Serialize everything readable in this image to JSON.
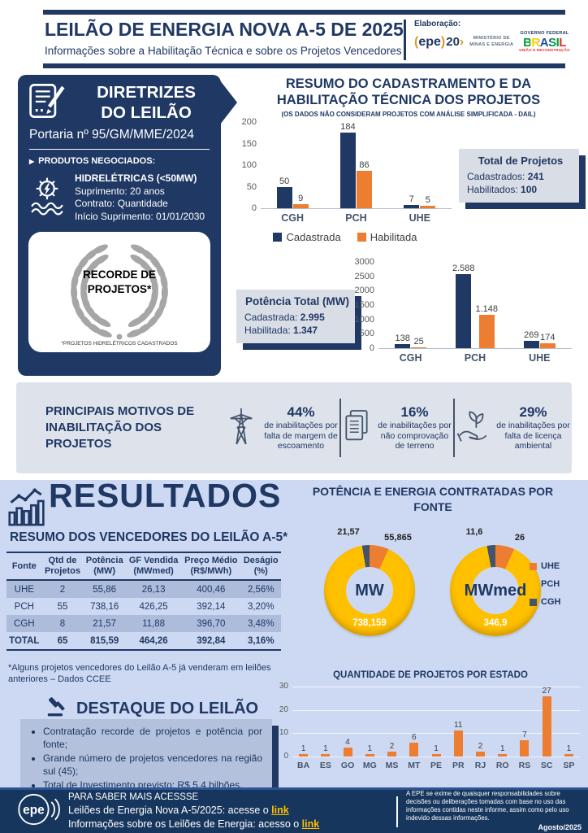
{
  "colors": {
    "navy": "#1f3864",
    "orange": "#ed7d31",
    "yellow": "#ffc000",
    "slate": "#44546a",
    "results_bg": "#cdd9f2",
    "band_bg": "#dee2eb",
    "row_shade": "#aebcdc",
    "link": "#ffc000"
  },
  "header": {
    "title": "LEILÃO DE ENERGIA NOVA A-5 DE 2025",
    "subtitle": "Informações sobre a Habilitação Técnica e sobre os Projetos Vencedores",
    "elaboration_label": "Elaboração:",
    "epe_text": "epe",
    "epe_paren_open": "(",
    "epe_paren_close": ")",
    "epe_anniversary": "20",
    "epe_swoosh": "›",
    "ministry_line1": "MINISTÉRIO DE",
    "ministry_line2": "MINAS E ENERGIA",
    "gov_top": "GOVERNO FEDERAL",
    "gov_name": "BRASIL",
    "gov_bottom": "UNIÃO E RECONSTRUÇÃO"
  },
  "guidelines_panel": {
    "title_line1": "DIRETRIZES",
    "title_line2": "DO LEILÃO",
    "ordinance": "Portaria nº 95/GM/MME/2024",
    "products_bullet": "▶",
    "products_label": "PRODUTOS NEGOCIADOS:",
    "product": {
      "name": "HIDRELÉTRICAS (<50MW)",
      "supply": "Suprimento: 20 anos",
      "contract": "Contrato: Quantidade",
      "start": "Início Suprimento: 01/01/2030"
    },
    "record_badge": {
      "title_line1": "RECORDE DE",
      "title_line2": "PROJETOS*",
      "footnote": "*PROJETOS HIDRELÉTRICOS CADASTRADOS"
    }
  },
  "registration_summary": {
    "title_line1": "RESUMO DO CADASTRAMENTO E DA",
    "title_line2": "HABILITAÇÃO TÉCNICA DOS PROJETOS",
    "subtitle": "(OS DADOS NÃO CONSIDERAM PROJETOS COM ANÁLISE SIMPLIFICADA - DAIL)",
    "total_box": {
      "title": "Total de Projetos",
      "l1": "Cadastrados: ",
      "v1": "241",
      "l2": "Habilitados: ",
      "v2": "100"
    },
    "power_box": {
      "title": "Potência Total (MW)",
      "l1": "Cadastrada: ",
      "v1": "2.995",
      "l2": "Habilitada: ",
      "v2": "1.347"
    }
  },
  "inability": {
    "title_line1": "PRINCIPAIS MOTIVOS DE",
    "title_line2": "INABILITAÇÃO DOS PROJETOS",
    "items": [
      {
        "pct": "44%",
        "text": "de inabilitações por falta de margem de escoamento",
        "icon": "transmission-tower"
      },
      {
        "pct": "16%",
        "text": "de inabilitações por não comprovação de terreno",
        "icon": "documents"
      },
      {
        "pct": "29%",
        "text": "de inabilitações por falta de licença ambiental",
        "icon": "hand-leaf"
      }
    ]
  },
  "results": {
    "title": "RESULTADOS",
    "winners_title": "RESUMO DOS VENCEDORES DO LEILÃO A-5*",
    "table": {
      "headers": [
        "Fonte",
        "Qtd de\nProjetos",
        "Potência\n(MW)",
        "GF Vendida\n(MWmed)",
        "Preço Médio\n(R$/MWh)",
        "Deságio\n(%)"
      ],
      "rows": [
        [
          "UHE",
          "2",
          "55,86",
          "26,13",
          "400,46",
          "2,56%"
        ],
        [
          "PCH",
          "55",
          "738,16",
          "426,25",
          "392,14",
          "3,20%"
        ],
        [
          "CGH",
          "8",
          "21,57",
          "11,88",
          "396,70",
          "3,48%"
        ],
        [
          "TOTAL",
          "65",
          "815,59",
          "464,26",
          "392,84",
          "3,16%"
        ]
      ]
    },
    "footnote": "*Alguns projetos vencedores do Leilão A-5 já venderam em leilões anteriores – Dados CCEE",
    "highlight": {
      "title": "DESTAQUE DO LEILÃO",
      "bullets": [
        "Contratação recorde de projetos e potência por fonte;",
        "Grande número de projetos vencedores na região sul (45);",
        "Total de Investimento previsto: R$ 5,4 bilhões."
      ]
    },
    "donuts_title_line1": "POTÊNCIA E ENERGIA CONTRATADAS POR",
    "donuts_title_line2": "FONTE",
    "states_title": "QUANTIDADE DE PROJETOS POR ESTADO"
  },
  "chart_data": [
    {
      "type": "bar",
      "id": "projects-by-source",
      "title": "RESUMO DO CADASTRAMENTO E DA HABILITAÇÃO TÉCNICA DOS PROJETOS",
      "categories": [
        "CGH",
        "PCH",
        "UHE"
      ],
      "series": [
        {
          "name": "Cadastrada",
          "color": "#1f3864",
          "values": [
            50,
            184,
            7
          ],
          "labels": [
            "50",
            "184",
            "7"
          ]
        },
        {
          "name": "Habilitada",
          "color": "#ed7d31",
          "values": [
            9,
            86,
            5
          ],
          "labels": [
            "9",
            "86",
            "5"
          ]
        }
      ],
      "ylim": [
        0,
        200
      ],
      "yticks": [
        "200",
        "150",
        "100",
        "50",
        "0"
      ],
      "grid": false,
      "legend": "bottom"
    },
    {
      "type": "bar",
      "id": "power-by-source",
      "title": "Potência Total (MW)",
      "categories": [
        "CGH",
        "PCH",
        "UHE"
      ],
      "series": [
        {
          "name": "Cadastrada",
          "color": "#1f3864",
          "values": [
            138,
            2588,
            269
          ],
          "labels": [
            "138",
            "2.588",
            "269"
          ]
        },
        {
          "name": "Habilitada",
          "color": "#ed7d31",
          "values": [
            25,
            1148,
            174
          ],
          "labels": [
            "25",
            "1.148",
            "174"
          ]
        }
      ],
      "ylim": [
        0,
        3000
      ],
      "yticks": [
        "3000",
        "2500",
        "2000",
        "1500",
        "1000",
        "500",
        "0"
      ],
      "grid": false,
      "legend": "none"
    },
    {
      "type": "pie",
      "id": "contracted-power-mw",
      "center_label": "MW",
      "slices": [
        {
          "name": "UHE",
          "value": 55.865,
          "label": "55,865",
          "color": "#ed7d31"
        },
        {
          "name": "PCH",
          "value": 738.159,
          "label": "738,159",
          "color": "#ffc000"
        },
        {
          "name": "CGH",
          "value": 21.57,
          "label": "21,57",
          "color": "#44546a"
        }
      ]
    },
    {
      "type": "pie",
      "id": "contracted-energy-mwmed",
      "center_label": "MWmed",
      "slices": [
        {
          "name": "UHE",
          "value": 26,
          "label": "26",
          "color": "#ed7d31"
        },
        {
          "name": "PCH",
          "value": 346.9,
          "label": "346,9",
          "color": "#ffc000"
        },
        {
          "name": "CGH",
          "value": 11.6,
          "label": "11,6",
          "color": "#44546a"
        }
      ]
    },
    {
      "type": "bar",
      "id": "projects-by-state",
      "title": "QUANTIDADE DE PROJETOS POR ESTADO",
      "categories": [
        "BA",
        "ES",
        "GO",
        "MG",
        "MS",
        "MT",
        "PE",
        "PR",
        "RJ",
        "RO",
        "RS",
        "SC",
        "SP"
      ],
      "series": [
        {
          "name": "Projetos",
          "color": "#ed7d31",
          "values": [
            1,
            1,
            4,
            1,
            2,
            6,
            1,
            11,
            2,
            1,
            7,
            27,
            1
          ],
          "labels": [
            "1",
            "1",
            "4",
            "1",
            "2",
            "6",
            "1",
            "11",
            "2",
            "1",
            "7",
            "27",
            "1"
          ]
        }
      ],
      "ylim": [
        0,
        30
      ],
      "yticks": [
        "30",
        "20",
        "10",
        "0"
      ],
      "grid": true,
      "legend": "none"
    }
  ],
  "footer": {
    "more_title": "PARA SABER MAIS ACESSSE",
    "line1_text": "Leilões de Energia Nova A-5/2025: acesse o ",
    "line1_link": "link",
    "line2_text": "Informações sobre os Leilões de Energia: acesso o ",
    "line2_link": "link",
    "epe_text": "epe",
    "disclaimer": "A EPE se exime de quaisquer responsabilidades sobre decisões ou deliberações tomadas com base no uso das informações contidas neste informe, assim como pelo uso indevido dessas informações.",
    "date": "Agosto/2025"
  }
}
